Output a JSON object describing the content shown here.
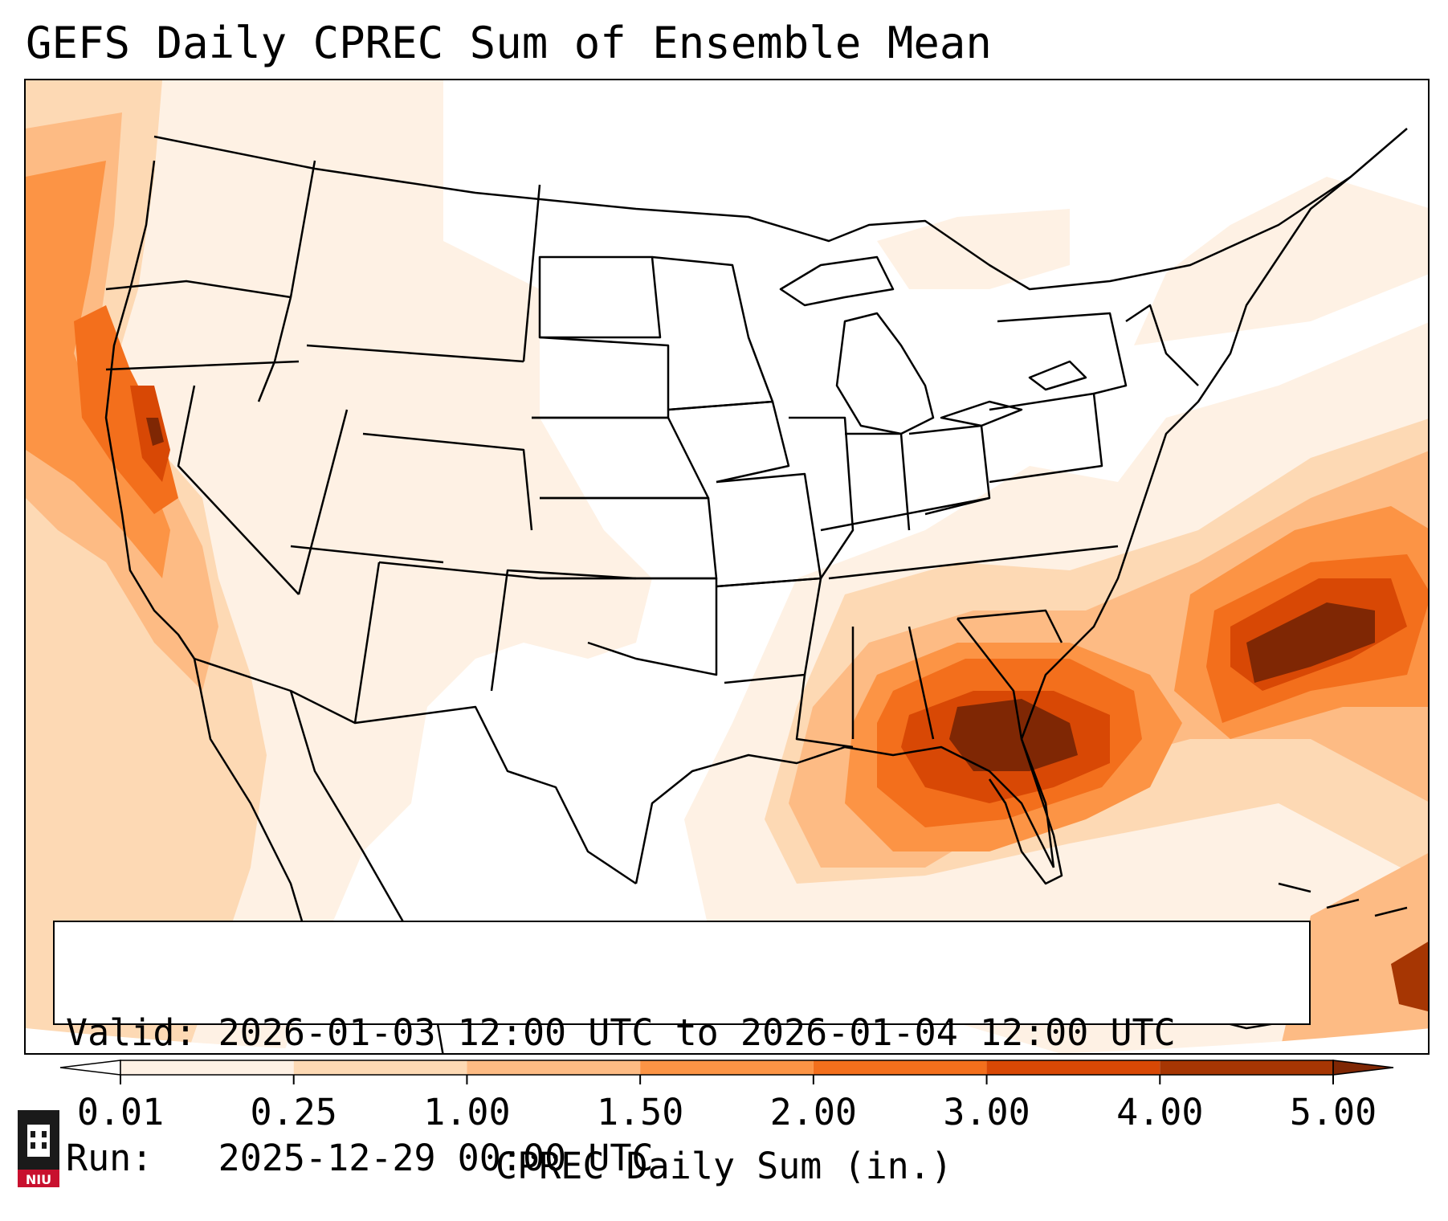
{
  "title": "GEFS Daily CPREC Sum of Ensemble Mean",
  "info": {
    "valid_label": "Valid:",
    "valid_range": "2026-01-03 12:00 UTC to 2026-01-04 12:00 UTC",
    "run_label": "Run:",
    "run_time": "2025-12-29 00:00 UTC"
  },
  "colorbar": {
    "label": "CPREC Daily Sum (in.)",
    "ticks": [
      "0.01",
      "0.25",
      "1.00",
      "1.50",
      "2.00",
      "3.00",
      "4.00",
      "5.00"
    ],
    "colors": [
      "#fef1e4",
      "#fdd9b4",
      "#fdbb84",
      "#fc9445",
      "#f36f1c",
      "#d84805",
      "#a63603"
    ],
    "extend_min_color": "#ffffff",
    "extend_max_color": "#7f2704"
  },
  "map": {
    "region": "Contiguous United States",
    "colors": {
      "none": "#ffffff",
      "very_light": "#fef1e4",
      "light": "#fdd9b4",
      "medium": "#fdbb84",
      "orange": "#fc9445",
      "deep_orange": "#f36f1c",
      "red_orange": "#d84805",
      "dark": "#7f2704"
    }
  },
  "logo": {
    "text": "NIU"
  }
}
